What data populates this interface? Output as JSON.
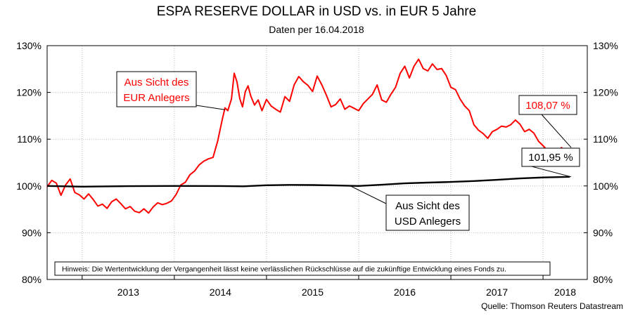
{
  "title": "ESPA RESERVE DOLLAR in USD vs. in EUR 5 Jahre",
  "subtitle": "Daten per 16.04.2018",
  "source": "Quelle: Thomson Reuters Datastream",
  "disclaimer": "Hinweis: Die Wertentwicklung der Vergangenheit lässt keine verlässlichen Rückschlüsse auf die zukünftige Entwicklung eines Fonds zu.",
  "colors": {
    "eur": "#ff0000",
    "usd": "#000000",
    "grid": "#bbbbbb"
  },
  "chart_data": {
    "type": "line",
    "title": "ESPA RESERVE DOLLAR in USD vs. in EUR 5 Jahre",
    "subtitle": "Daten per 16.04.2018",
    "x_range": [
      2012.62,
      2018.48
    ],
    "ylim": [
      80,
      130
    ],
    "y_ticks": [
      80,
      90,
      100,
      110,
      120,
      130
    ],
    "y_tick_labels": [
      "80%",
      "90%",
      "100%",
      "110%",
      "120%",
      "130%"
    ],
    "x_tick_labels": [
      "2013",
      "2014",
      "2015",
      "2016",
      "2017",
      "2018"
    ],
    "grid": true,
    "series": [
      {
        "name": "Aus Sicht des EUR Anlegers",
        "color": "#ff0000",
        "end_label": "108,07 %",
        "x": [
          2012.62,
          2012.67,
          2012.72,
          2012.77,
          2012.82,
          2012.87,
          2012.92,
          2012.97,
          2013.02,
          2013.07,
          2013.12,
          2013.17,
          2013.22,
          2013.27,
          2013.32,
          2013.37,
          2013.42,
          2013.47,
          2013.52,
          2013.57,
          2013.62,
          2013.67,
          2013.72,
          2013.77,
          2013.82,
          2013.87,
          2013.92,
          2013.97,
          2014.02,
          2014.07,
          2014.12,
          2014.17,
          2014.22,
          2014.27,
          2014.32,
          2014.37,
          2014.42,
          2014.47,
          2014.52,
          2014.55,
          2014.58,
          2014.62,
          2014.65,
          2014.68,
          2014.71,
          2014.74,
          2014.77,
          2014.8,
          2014.83,
          2014.87,
          2014.91,
          2014.95,
          2015.0,
          2015.05,
          2015.1,
          2015.15,
          2015.2,
          2015.25,
          2015.3,
          2015.35,
          2015.4,
          2015.45,
          2015.5,
          2015.55,
          2015.6,
          2015.65,
          2015.7,
          2015.75,
          2015.8,
          2015.85,
          2015.9,
          2015.95,
          2016.0,
          2016.05,
          2016.1,
          2016.15,
          2016.2,
          2016.25,
          2016.3,
          2016.35,
          2016.4,
          2016.45,
          2016.5,
          2016.55,
          2016.6,
          2016.65,
          2016.7,
          2016.75,
          2016.8,
          2016.85,
          2016.9,
          2016.95,
          2017.0,
          2017.05,
          2017.1,
          2017.15,
          2017.2,
          2017.25,
          2017.3,
          2017.35,
          2017.4,
          2017.45,
          2017.5,
          2017.55,
          2017.6,
          2017.65,
          2017.7,
          2017.75,
          2017.8,
          2017.85,
          2017.9,
          2017.95,
          2018.0,
          2018.05,
          2018.1,
          2018.15,
          2018.2,
          2018.25,
          2018.29
        ],
        "y": [
          99.8,
          101.2,
          100.6,
          98.0,
          100.2,
          101.5,
          98.6,
          98.1,
          97.2,
          98.3,
          97.1,
          95.7,
          96.1,
          95.2,
          96.6,
          97.2,
          96.2,
          95.1,
          95.6,
          94.6,
          94.3,
          95.1,
          94.2,
          95.5,
          96.4,
          96.0,
          96.3,
          96.8,
          98.2,
          100.2,
          100.8,
          102.4,
          103.2,
          104.5,
          105.3,
          105.8,
          106.1,
          109.6,
          114.2,
          116.7,
          116.1,
          118.6,
          124.1,
          122.2,
          118.7,
          116.9,
          120.2,
          121.4,
          119.2,
          117.3,
          118.4,
          116.1,
          118.5,
          117.1,
          116.4,
          115.8,
          119.1,
          118.1,
          121.6,
          123.4,
          122.3,
          121.5,
          120.2,
          123.5,
          121.6,
          119.4,
          116.9,
          117.4,
          118.6,
          116.4,
          117.1,
          116.6,
          116.1,
          117.6,
          118.6,
          119.6,
          121.6,
          118.4,
          117.9,
          119.6,
          121.1,
          124.1,
          125.6,
          123.1,
          125.6,
          127.1,
          125.1,
          124.6,
          126.1,
          124.9,
          125.1,
          123.6,
          121.1,
          120.6,
          118.6,
          117.1,
          116.1,
          113.1,
          111.9,
          111.2,
          110.2,
          111.6,
          112.1,
          112.8,
          112.6,
          113.1,
          114.1,
          113.2,
          111.6,
          112.1,
          111.3,
          109.6,
          108.6,
          107.6,
          106.8,
          107.1,
          108.2,
          107.4,
          108.07
        ]
      },
      {
        "name": "Aus Sicht des USD Anlegers",
        "color": "#000000",
        "end_label": "101,95 %",
        "x": [
          2012.62,
          2013.0,
          2013.5,
          2014.0,
          2014.5,
          2014.75,
          2015.0,
          2015.25,
          2015.5,
          2015.75,
          2016.0,
          2016.25,
          2016.5,
          2016.75,
          2017.0,
          2017.25,
          2017.5,
          2017.75,
          2018.0,
          2018.29
        ],
        "y": [
          100.0,
          99.85,
          99.95,
          100.0,
          99.98,
          99.92,
          100.15,
          100.22,
          100.2,
          100.1,
          100.0,
          100.25,
          100.55,
          100.72,
          100.85,
          101.05,
          101.3,
          101.6,
          101.82,
          101.95
        ]
      }
    ],
    "annotations": [
      {
        "text_lines": [
          "Aus Sicht des",
          "EUR Anlegers"
        ],
        "color": "#ff0000"
      },
      {
        "text_lines": [
          "Aus Sicht des",
          "USD Anlegers"
        ],
        "color": "#000000"
      }
    ]
  }
}
